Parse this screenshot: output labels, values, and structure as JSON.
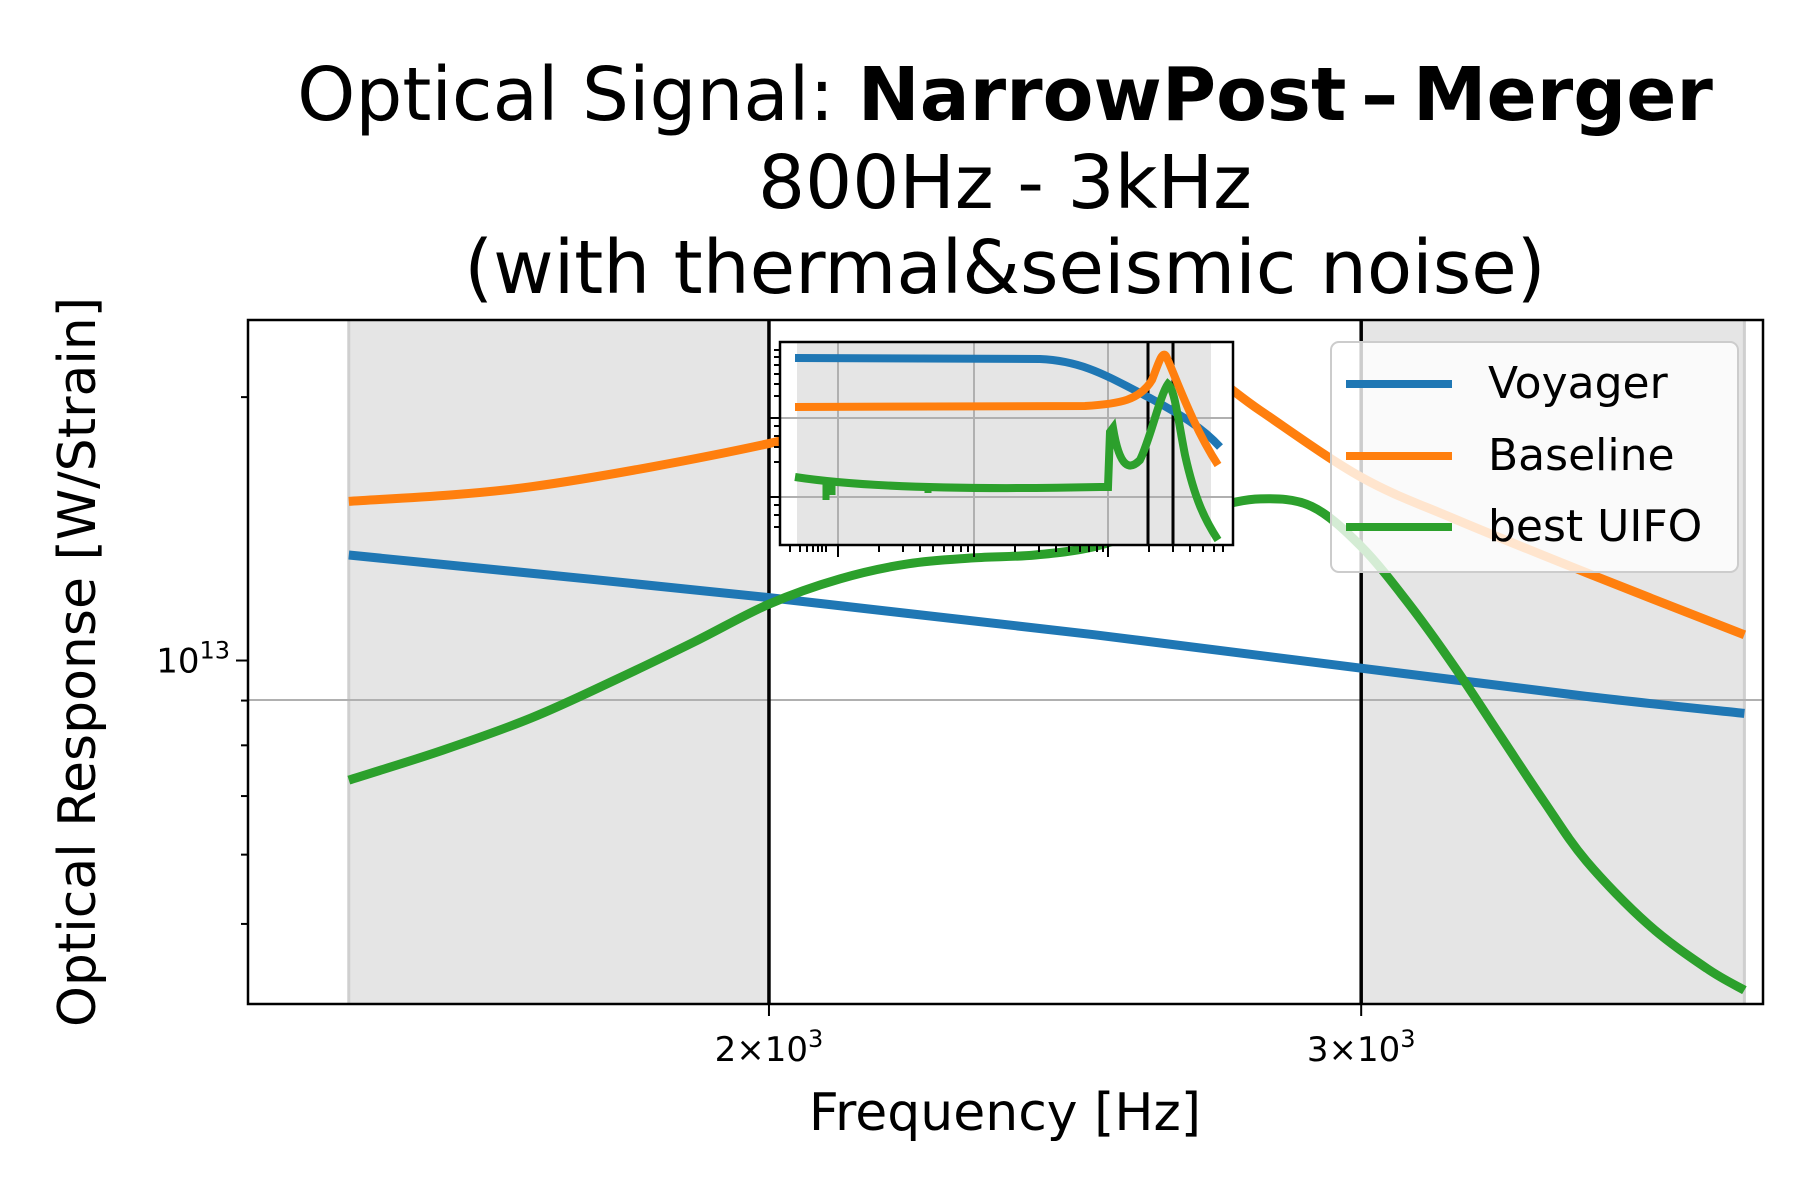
{
  "chart_data": {
    "type": "line",
    "title_prefix": "Optical Signal: ",
    "title_bold": "NarrowPost – Merger",
    "subtitle": "800Hz - 3kHz",
    "subtitle2": "(with thermal&seismic noise)",
    "xlabel": "Frequency [Hz]",
    "ylabel": "Optical Response [W/Strain]",
    "xscale": "log",
    "yscale": "log",
    "xlim": [
      1400,
      3950
    ],
    "ylim": [
      4050000000000.0,
      24500000000000.0
    ],
    "x_tick_labels": [
      {
        "value": 2000,
        "mantissa": "2",
        "exp": "3"
      },
      {
        "value": 3000,
        "mantissa": "3",
        "exp": "3"
      }
    ],
    "y_tick_labels": [
      {
        "value": 10000000000000.0,
        "mantissa": "10",
        "exp": "13"
      }
    ],
    "vertical_lines": [
      2000,
      3000
    ],
    "shaded_regions": [
      [
        1500,
        2000
      ],
      [
        3000,
        3900
      ]
    ],
    "grid": true,
    "legend_position": "upper right",
    "series": [
      {
        "name": "Voyager",
        "color": "#1f77b4",
        "x": [
          1500,
          2000,
          2500,
          3000,
          3500,
          3900
        ],
        "y": [
          13200000000000.0,
          11800000000000.0,
          10700000000000.0,
          9800000000000.0,
          9100000000000.0,
          8700000000000.0
        ]
      },
      {
        "name": "Baseline",
        "color": "#ff7f0e",
        "x": [
          1500,
          1700,
          2000,
          2200,
          2400,
          2500,
          2600,
          2700,
          2800,
          3000,
          3200,
          3500,
          3900
        ],
        "y": [
          15200000000000.0,
          15800000000000.0,
          17700000000000.0,
          19600000000000.0,
          21400000000000.0,
          22800000000000.0,
          22400000000000.0,
          21300000000000.0,
          19300000000000.0,
          16200000000000.0,
          14500000000000.0,
          12600000000000.0,
          10700000000000.0
        ]
      },
      {
        "name": "best UIFO",
        "color": "#2ca02c",
        "x": [
          1500,
          1600,
          1700,
          1800,
          1900,
          2000,
          2100,
          2200,
          2300,
          2400,
          2500,
          2600,
          2700,
          2800,
          2900,
          3000,
          3100,
          3200,
          3300,
          3400,
          3500,
          3650,
          3800,
          3900
        ],
        "y": [
          7300000000000.0,
          7900000000000.0,
          8600000000000.0,
          9500000000000.0,
          10500000000000.0,
          11600000000000.0,
          12400000000000.0,
          12900000000000.0,
          13100000000000.0,
          13200000000000.0,
          13500000000000.0,
          14200000000000.0,
          14900000000000.0,
          15300000000000.0,
          15000000000000.0,
          13500000000000.0,
          11600000000000.0,
          9800000000000.0,
          8200000000000.0,
          6900000000000.0,
          5900000000000.0,
          5000000000000.0,
          4450000000000.0,
          4200000000000.0
        ]
      }
    ],
    "inset": {
      "xscale": "log",
      "yscale": "log",
      "vertical_lines": [
        2000,
        3000
      ],
      "shaded_region": [
        30,
        4000
      ]
    }
  }
}
